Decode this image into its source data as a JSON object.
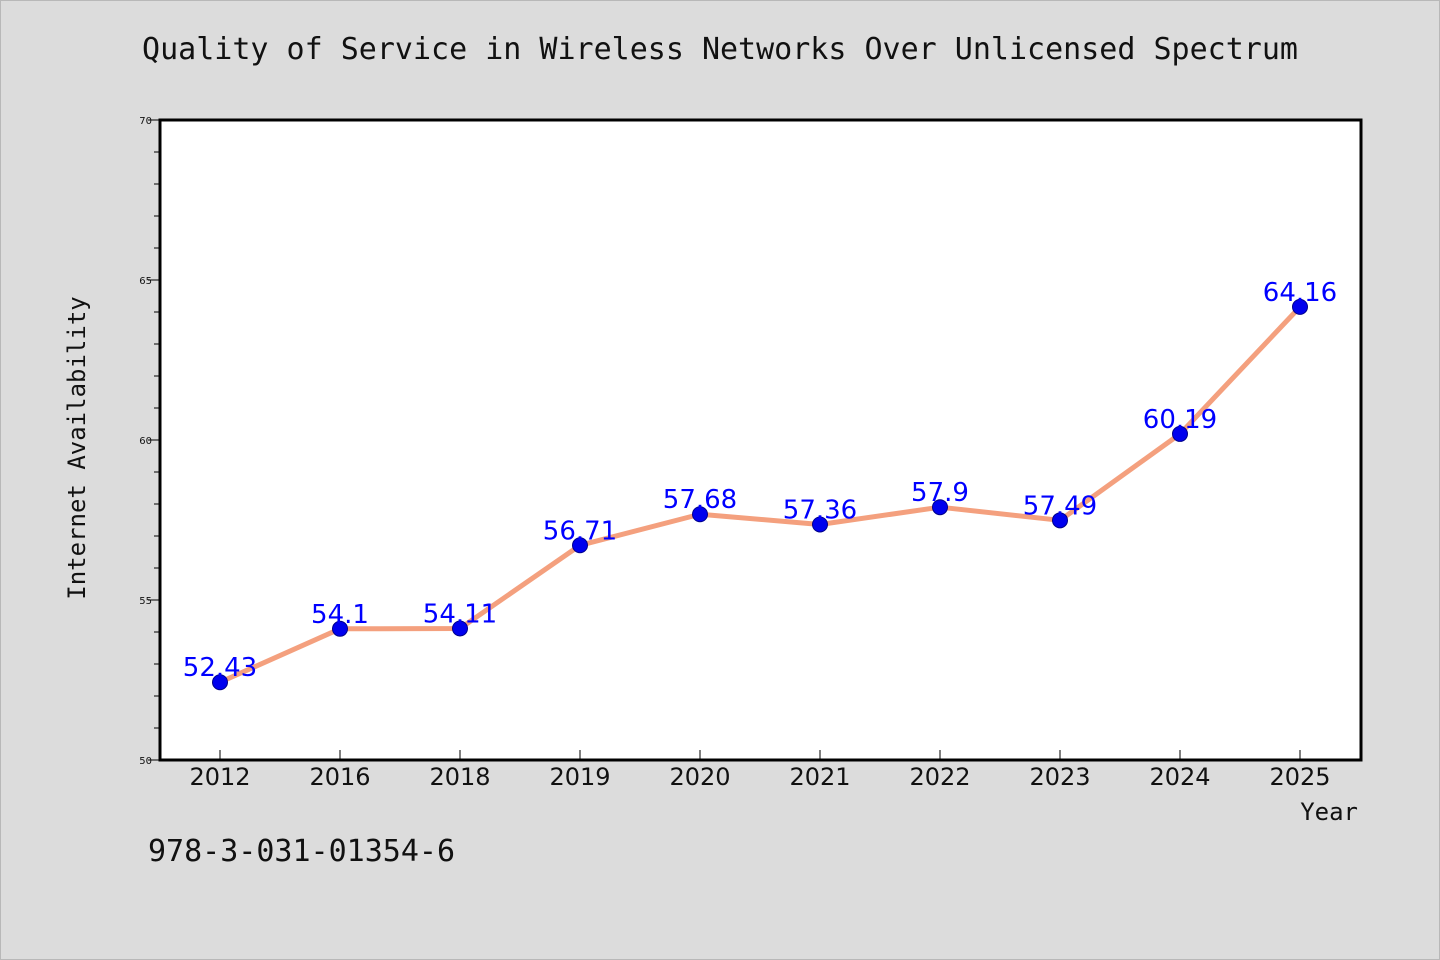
{
  "identifier": "978-3-031-01354-6",
  "chart_data": {
    "type": "line",
    "title": "Quality of Service in Wireless Networks Over Unlicensed Spectrum",
    "xlabel": "Year",
    "ylabel": "Internet Availability",
    "categories": [
      "2012",
      "2016",
      "2018",
      "2019",
      "2020",
      "2021",
      "2022",
      "2023",
      "2024",
      "2025"
    ],
    "series": [
      {
        "values": [
          52.43,
          54.1,
          54.11,
          56.71,
          57.68,
          57.36,
          57.9,
          57.49,
          60.19,
          64.16
        ],
        "data_labels": [
          "52.43",
          "54.1",
          "54.11",
          "56.71",
          "57.68",
          "57.36",
          "57.9",
          "57.49",
          "60.19",
          "64.16"
        ]
      }
    ],
    "ylim": [
      50,
      70
    ],
    "yticks": [
      "50",
      "55",
      "60",
      "65",
      "70"
    ],
    "grid": false,
    "line_color": "#f4a07e",
    "marker_color": "#0000ee",
    "label_color": "#0000ff"
  }
}
